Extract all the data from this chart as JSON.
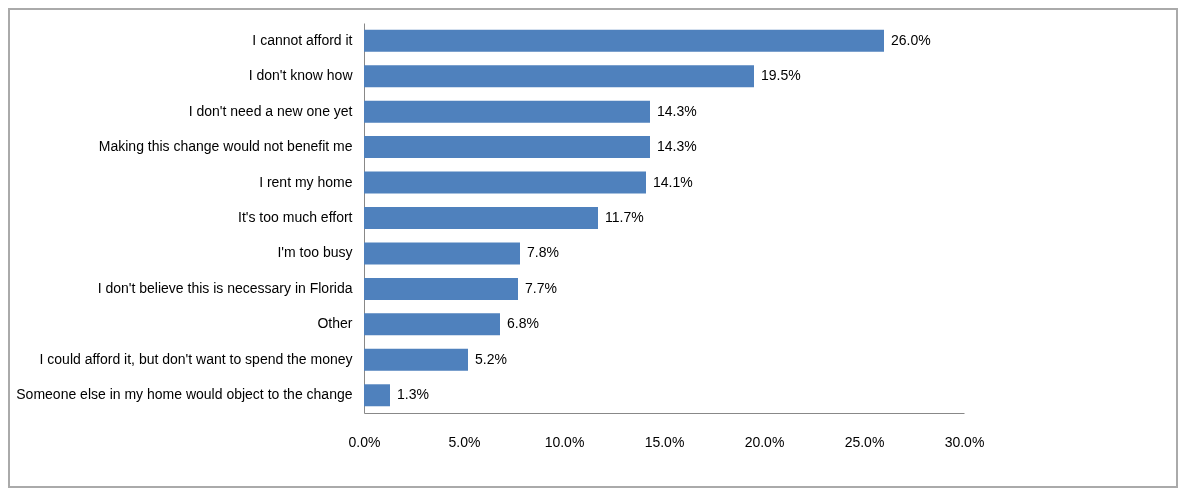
{
  "chart_data": {
    "type": "bar",
    "orientation": "horizontal",
    "categories": [
      "I cannot afford  it",
      "I don't know how",
      "I don't need a new one yet",
      "Making this change would not benefit me",
      "I rent my home",
      "It's too much effort",
      "I'm too busy",
      "I don't believe this is necessary  in Florida",
      "Other",
      "I could afford it, but don't want to spend the money",
      "Someone else in my home would object to the change"
    ],
    "values": [
      26.0,
      19.5,
      14.3,
      14.3,
      14.1,
      11.7,
      7.8,
      7.7,
      6.8,
      5.2,
      1.3
    ],
    "value_labels": [
      "26.0%",
      "19.5%",
      "14.3%",
      "14.3%",
      "14.1%",
      "11.7%",
      "7.8%",
      "7.7%",
      "6.8%",
      "5.2%",
      "1.3%"
    ],
    "color": "#4f81bd",
    "xlim": [
      0,
      30
    ],
    "xticks": [
      {
        "value": 0,
        "label": "0.0%"
      },
      {
        "value": 5,
        "label": "5.0%"
      },
      {
        "value": 10,
        "label": "10.0%"
      },
      {
        "value": 15,
        "label": "15.0%"
      },
      {
        "value": 20,
        "label": "20.0%"
      },
      {
        "value": 25,
        "label": "25.0%"
      },
      {
        "value": 30,
        "label": "30.0%"
      }
    ],
    "grid": false
  }
}
